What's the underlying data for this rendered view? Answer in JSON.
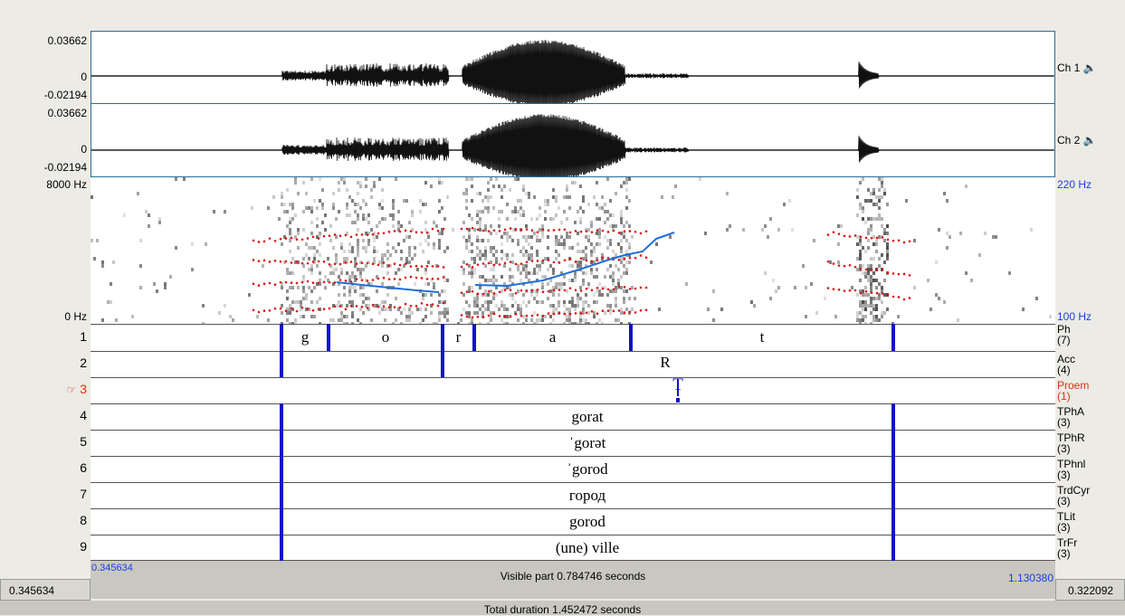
{
  "waveform": {
    "ch1": {
      "max": "0.03662",
      "zero": "0",
      "min": "-0.02194",
      "label": "Ch 1"
    },
    "ch2": {
      "max": "0.03662",
      "zero": "0",
      "min": "-0.02194",
      "label": "Ch 2"
    }
  },
  "spectrogram": {
    "fmax": "8000 Hz",
    "fmin": "0 Hz",
    "pitch_max": "220 Hz",
    "pitch_min": "100 Hz"
  },
  "tiers": [
    {
      "num": "1",
      "name": "Ph",
      "count": "(7)"
    },
    {
      "num": "2",
      "name": "Acc",
      "count": "(4)"
    },
    {
      "num": "3",
      "name": "Proem",
      "count": "(1)",
      "active": true,
      "marker": "☞"
    },
    {
      "num": "4",
      "name": "TPhA",
      "count": "(3)"
    },
    {
      "num": "5",
      "name": "TPhR",
      "count": "(3)"
    },
    {
      "num": "6",
      "name": "TPhnl",
      "count": "(3)"
    },
    {
      "num": "7",
      "name": "TrdCyr",
      "count": "(3)"
    },
    {
      "num": "8",
      "name": "TLit",
      "count": "(3)"
    },
    {
      "num": "9",
      "name": "TrFr",
      "count": "(3)"
    }
  ],
  "segments": {
    "ph": [
      "g",
      "o",
      "r",
      "a",
      "t"
    ],
    "acc": "R",
    "proem": "T",
    "tpha": "gorat",
    "tphr": "ˈgorət",
    "tphnl": "ˈgorod",
    "trdcyr": "город",
    "tlit": "gorod",
    "trfr": "(une) ville"
  },
  "footer": {
    "left_time": "0.345634",
    "visible_start": "0.345634",
    "visible_label": "Visible part 0.784746 seconds",
    "visible_end": "1.130380",
    "right_time": "0.322092",
    "total": "Total duration 1.452472 seconds"
  },
  "colors": {
    "boundary": "#1010cc",
    "pitch": "#1e6fd9",
    "formant": "#e01010",
    "active": "#e03010",
    "axis_blue": "#1a3fe0"
  }
}
